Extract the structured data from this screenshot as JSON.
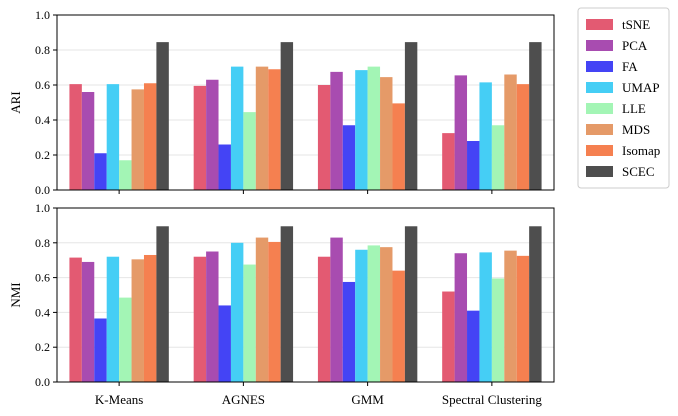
{
  "chart_data": [
    {
      "type": "bar",
      "ylabel": "ARI",
      "ylim": [
        0,
        1
      ],
      "yticks": [
        "0.0",
        "0.2",
        "0.4",
        "0.6",
        "0.8",
        "1.0"
      ],
      "grid": "horizontal",
      "categories": [
        "K-Means",
        "AGNES",
        "GMM",
        "Spectral Clustering"
      ],
      "show_category_labels": false,
      "series": [
        {
          "name": "tSNE",
          "color": "#e35a72",
          "values": [
            0.605,
            0.595,
            0.6,
            0.325
          ]
        },
        {
          "name": "PCA",
          "color": "#a84cb0",
          "values": [
            0.56,
            0.63,
            0.675,
            0.655
          ]
        },
        {
          "name": "FA",
          "color": "#4444f5",
          "values": [
            0.21,
            0.26,
            0.37,
            0.28
          ]
        },
        {
          "name": "UMAP",
          "color": "#45cef5",
          "values": [
            0.605,
            0.705,
            0.685,
            0.615
          ]
        },
        {
          "name": "LLE",
          "color": "#a3f5b5",
          "values": [
            0.17,
            0.445,
            0.705,
            0.37
          ]
        },
        {
          "name": "MDS",
          "color": "#e59a68",
          "values": [
            0.575,
            0.705,
            0.645,
            0.66
          ]
        },
        {
          "name": "Isomap",
          "color": "#f58050",
          "values": [
            0.61,
            0.69,
            0.495,
            0.605
          ]
        },
        {
          "name": "SCEC",
          "color": "#4e4e4e",
          "values": [
            0.845,
            0.845,
            0.845,
            0.845
          ]
        }
      ]
    },
    {
      "type": "bar",
      "ylabel": "NMI",
      "ylim": [
        0,
        1
      ],
      "yticks": [
        "0.0",
        "0.2",
        "0.4",
        "0.6",
        "0.8",
        "1.0"
      ],
      "grid": "horizontal",
      "categories": [
        "K-Means",
        "AGNES",
        "GMM",
        "Spectral Clustering"
      ],
      "show_category_labels": true,
      "series": [
        {
          "name": "tSNE",
          "color": "#e35a72",
          "values": [
            0.715,
            0.72,
            0.72,
            0.52
          ]
        },
        {
          "name": "PCA",
          "color": "#a84cb0",
          "values": [
            0.69,
            0.75,
            0.83,
            0.74
          ]
        },
        {
          "name": "FA",
          "color": "#4444f5",
          "values": [
            0.365,
            0.44,
            0.575,
            0.41
          ]
        },
        {
          "name": "UMAP",
          "color": "#45cef5",
          "values": [
            0.72,
            0.8,
            0.76,
            0.745
          ]
        },
        {
          "name": "LLE",
          "color": "#a3f5b5",
          "values": [
            0.485,
            0.675,
            0.785,
            0.595
          ]
        },
        {
          "name": "MDS",
          "color": "#e59a68",
          "values": [
            0.705,
            0.83,
            0.775,
            0.755
          ]
        },
        {
          "name": "Isomap",
          "color": "#f58050",
          "values": [
            0.73,
            0.805,
            0.64,
            0.725
          ]
        },
        {
          "name": "SCEC",
          "color": "#4e4e4e",
          "values": [
            0.895,
            0.895,
            0.895,
            0.895
          ]
        }
      ]
    }
  ],
  "legend": {
    "placement": "outside-right-top",
    "entries": [
      {
        "name": "tSNE",
        "color": "#e35a72"
      },
      {
        "name": "PCA",
        "color": "#a84cb0"
      },
      {
        "name": "FA",
        "color": "#4444f5"
      },
      {
        "name": "UMAP",
        "color": "#45cef5"
      },
      {
        "name": "LLE",
        "color": "#a3f5b5"
      },
      {
        "name": "MDS",
        "color": "#e59a68"
      },
      {
        "name": "Isomap",
        "color": "#f58050"
      },
      {
        "name": "SCEC",
        "color": "#4e4e4e"
      }
    ]
  }
}
